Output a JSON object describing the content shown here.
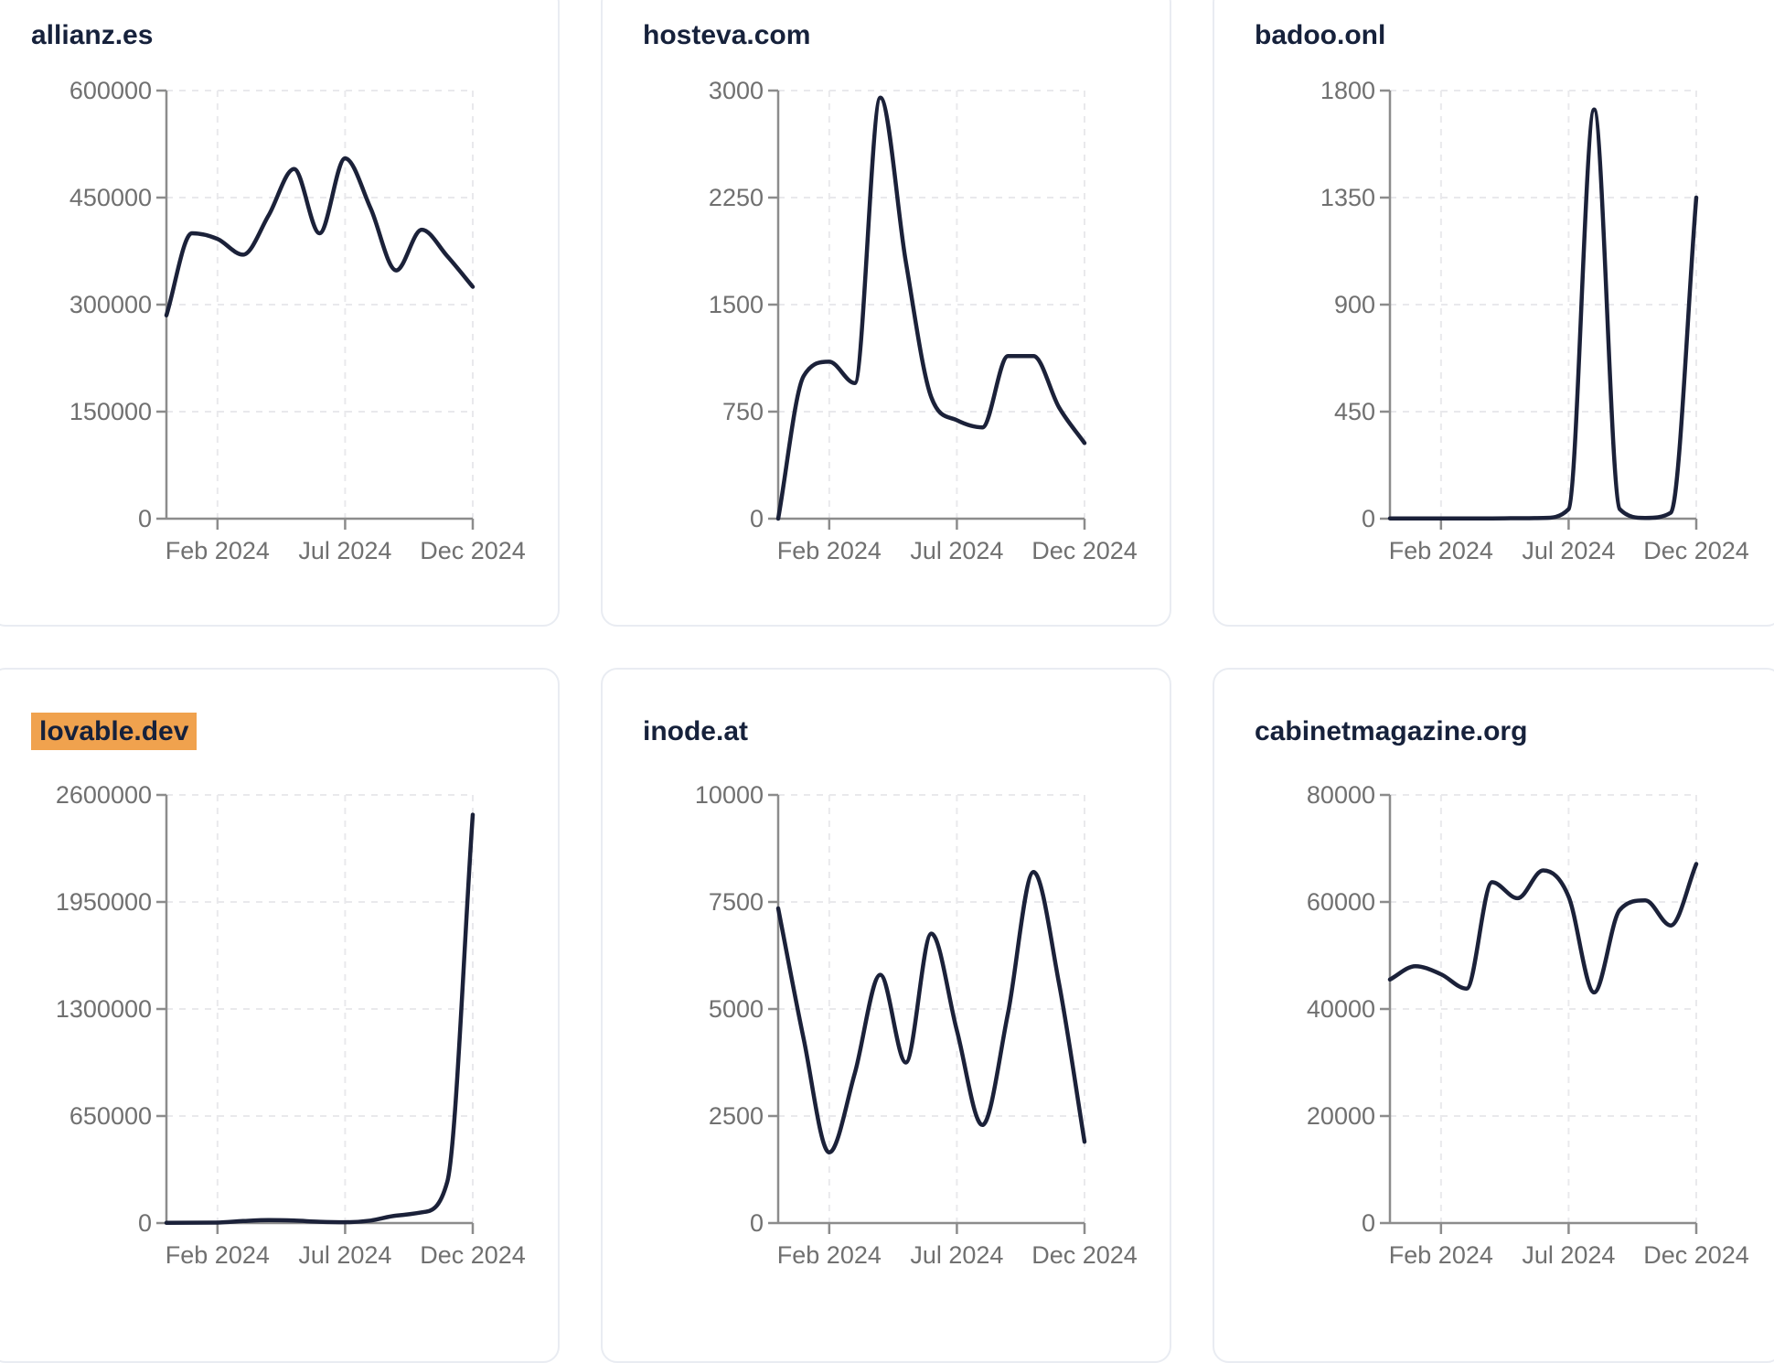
{
  "style": {
    "line_color": "#1b2139",
    "grid_color": "#e9e9ec",
    "axis_color": "#8c8c8c",
    "tick_text_color": "#707070",
    "title_color": "#16213b",
    "card_border": "#e9ecf2",
    "highlight_color": "#f0a24e",
    "background": "#ffffff"
  },
  "x_axis": {
    "months": [
      "Dec 2023",
      "Jan 2024",
      "Feb 2024",
      "Mar 2024",
      "Apr 2024",
      "May 2024",
      "Jun 2024",
      "Jul 2024",
      "Aug 2024",
      "Sep 2024",
      "Oct 2024",
      "Nov 2024",
      "Dec 2024"
    ],
    "tick_labels": [
      {
        "label": "Feb 2024",
        "month_index": 2
      },
      {
        "label": "Jul 2024",
        "month_index": 7
      },
      {
        "label": "Dec 2024",
        "month_index": 12
      }
    ]
  },
  "chart_data": [
    {
      "type": "line",
      "title": "allianz.es",
      "highlighted": false,
      "ylim": [
        0,
        600000
      ],
      "yticks": [
        0,
        150000,
        300000,
        450000,
        600000
      ],
      "x": [
        "Dec 2023",
        "Jan 2024",
        "Feb 2024",
        "Mar 2024",
        "Apr 2024",
        "May 2024",
        "Jun 2024",
        "Jul 2024",
        "Aug 2024",
        "Sep 2024",
        "Oct 2024",
        "Nov 2024",
        "Dec 2024"
      ],
      "values": [
        285000,
        400000,
        392000,
        370000,
        425000,
        490000,
        400000,
        505000,
        435000,
        348000,
        405000,
        368000,
        325000
      ]
    },
    {
      "type": "line",
      "title": "hosteva.com",
      "highlighted": false,
      "ylim": [
        0,
        3000
      ],
      "yticks": [
        0,
        750,
        1500,
        2250,
        3000
      ],
      "x": [
        "Dec 2023",
        "Jan 2024",
        "Feb 2024",
        "Mar 2024",
        "Apr 2024",
        "May 2024",
        "Jun 2024",
        "Jul 2024",
        "Aug 2024",
        "Sep 2024",
        "Oct 2024",
        "Nov 2024",
        "Dec 2024"
      ],
      "values": [
        0,
        1000,
        1100,
        950,
        2950,
        1800,
        850,
        690,
        640,
        1140,
        1140,
        780,
        530
      ]
    },
    {
      "type": "line",
      "title": "badoo.onl",
      "highlighted": false,
      "ylim": [
        0,
        1800
      ],
      "yticks": [
        0,
        450,
        900,
        1350,
        1800
      ],
      "x": [
        "Dec 2023",
        "Jan 2024",
        "Feb 2024",
        "Mar 2024",
        "Apr 2024",
        "May 2024",
        "Jun 2024",
        "Jul 2024",
        "Aug 2024",
        "Sep 2024",
        "Oct 2024",
        "Nov 2024",
        "Dec 2024"
      ],
      "values": [
        1,
        1,
        1,
        1,
        1,
        2,
        3,
        40,
        1720,
        40,
        3,
        25,
        1350
      ]
    },
    {
      "type": "line",
      "title": "lovable.dev",
      "highlighted": true,
      "ylim": [
        0,
        2600000
      ],
      "yticks": [
        0,
        650000,
        1300000,
        1950000,
        2600000
      ],
      "x": [
        "Dec 2023",
        "Jan 2024",
        "Feb 2024",
        "Mar 2024",
        "Apr 2024",
        "May 2024",
        "Jun 2024",
        "Jul 2024",
        "Aug 2024",
        "Sep 2024",
        "Oct 2024",
        "Nov 2024",
        "Dec 2024"
      ],
      "values": [
        1000,
        2000,
        3000,
        12000,
        18000,
        15000,
        8000,
        5000,
        15000,
        45000,
        65000,
        250000,
        2480000
      ]
    },
    {
      "type": "line",
      "title": "inode.at",
      "highlighted": false,
      "ylim": [
        0,
        10000
      ],
      "yticks": [
        0,
        2500,
        5000,
        7500,
        10000
      ],
      "x": [
        "Dec 2023",
        "Jan 2024",
        "Feb 2024",
        "Mar 2024",
        "Apr 2024",
        "May 2024",
        "Jun 2024",
        "Jul 2024",
        "Aug 2024",
        "Sep 2024",
        "Oct 2024",
        "Nov 2024",
        "Dec 2024"
      ],
      "values": [
        7350,
        4300,
        1650,
        3500,
        5800,
        3750,
        6760,
        4500,
        2290,
        4900,
        8200,
        5600,
        1900
      ]
    },
    {
      "type": "line",
      "title": "cabinetmagazine.org",
      "highlighted": false,
      "ylim": [
        0,
        80000
      ],
      "yticks": [
        0,
        20000,
        40000,
        60000,
        80000
      ],
      "x": [
        "Dec 2023",
        "Jan 2024",
        "Feb 2024",
        "Mar 2024",
        "Apr 2024",
        "May 2024",
        "Jun 2024",
        "Jul 2024",
        "Aug 2024",
        "Sep 2024",
        "Oct 2024",
        "Nov 2024",
        "Dec 2024"
      ],
      "values": [
        45500,
        48000,
        46500,
        43800,
        63700,
        60700,
        65900,
        61000,
        43100,
        58500,
        60300,
        55600,
        67100
      ]
    }
  ]
}
